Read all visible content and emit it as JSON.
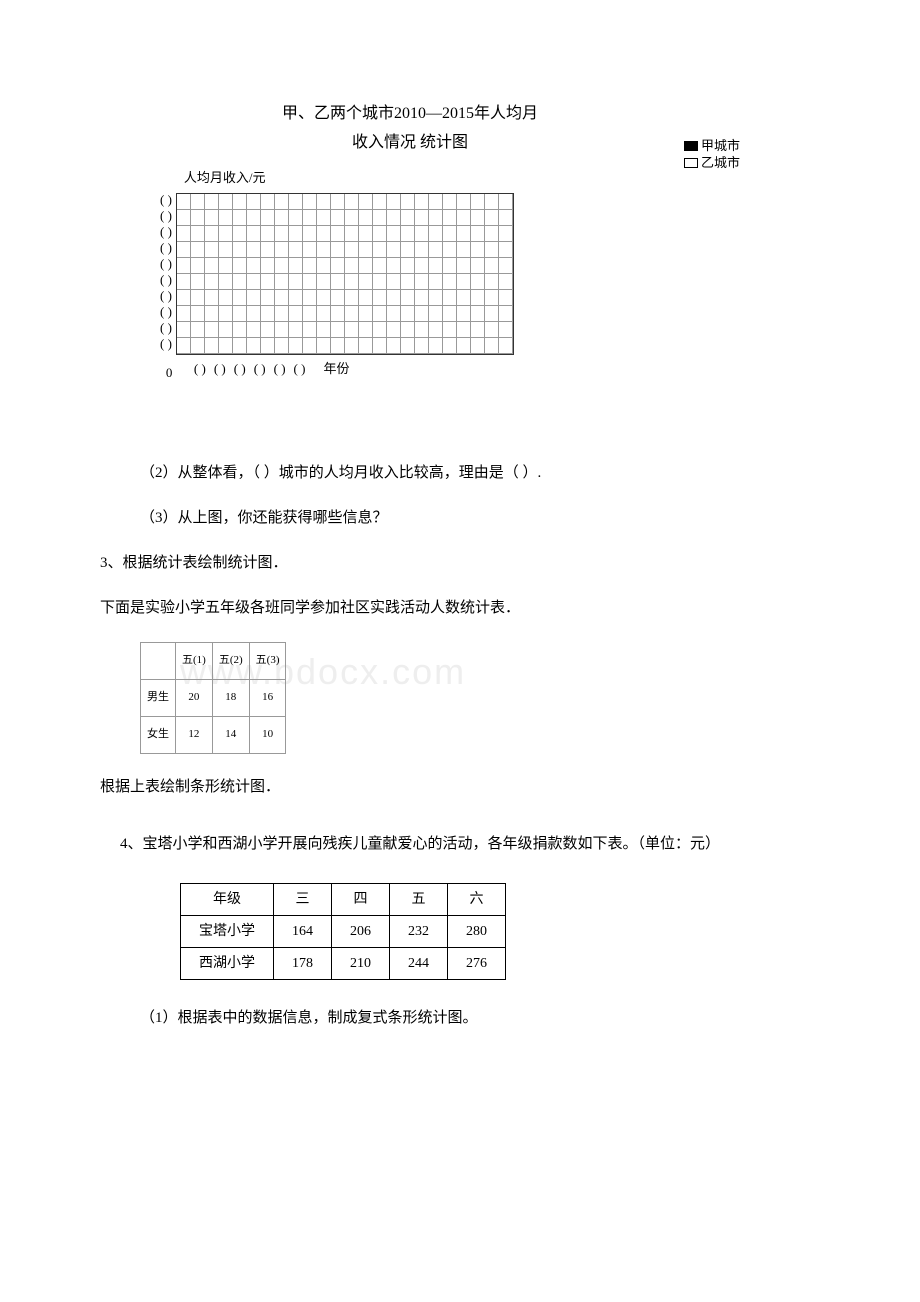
{
  "chart": {
    "title_line1": "甲、乙两个城市2010—2015年人均月",
    "title_line2": "收入情况 统计图",
    "legend": {
      "series1": "甲城市",
      "series2": "乙城市"
    },
    "y_axis_title": "人均月收入/元",
    "y_labels": [
      "(      )",
      "(      )",
      "(      )",
      "(      )",
      "(      )",
      "(      )",
      "(      )",
      "(      )",
      "(      )",
      "(      )"
    ],
    "zero_label": "0",
    "x_labels": [
      "(    )",
      "(    )",
      "(    )",
      "(    )",
      "(    )",
      "(    )"
    ],
    "x_end_label": "年份",
    "grid_cols": 24,
    "grid_rows": 10,
    "grid_border_color": "#333",
    "grid_line_color": "#999"
  },
  "q2": "（2）从整体看，（ ）城市的人均月收入比较高，理由是（ ）.",
  "q2_3": "（3）从上图，你还能获得哪些信息？",
  "q3_title": "3、根据统计表绘制统计图．",
  "q3_desc": "下面是实验小学五年级各班同学参加社区实践活动人数统计表．",
  "q3_table": {
    "headers": [
      "",
      "五(1)",
      "五(2)",
      "五(3)"
    ],
    "rows": [
      [
        "男生",
        "20",
        "18",
        "16"
      ],
      [
        "女生",
        "12",
        "14",
        "10"
      ]
    ]
  },
  "q3_instruction": "根据上表绘制条形统计图．",
  "q4_text": "4、宝塔小学和西湖小学开展向残疾儿童献爱心的活动，各年级捐款数如下表。（单位：元）",
  "q4_table": {
    "header_label": "年级",
    "grades": [
      "三",
      "四",
      "五",
      "六"
    ],
    "rows": [
      {
        "school": "宝塔小学",
        "values": [
          "164",
          "206",
          "232",
          "280"
        ]
      },
      {
        "school": "西湖小学",
        "values": [
          "178",
          "210",
          "244",
          "276"
        ]
      }
    ]
  },
  "q4_sub": "（1）根据表中的数据信息，制成复式条形统计图。",
  "watermark": "www.bdocx.com"
}
